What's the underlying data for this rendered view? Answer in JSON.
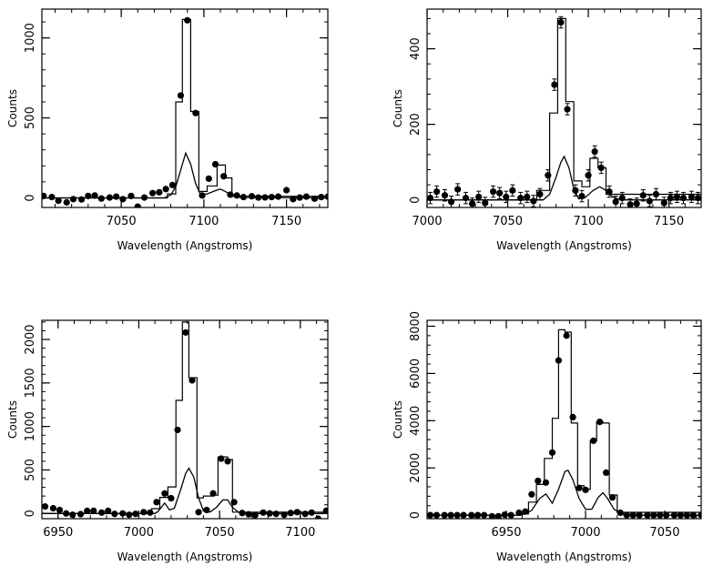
{
  "chart_data": [
    {
      "type": "scatter",
      "xlabel": "Wavelength (Angstroms)",
      "ylabel": "Counts",
      "xlim": [
        7002,
        7175
      ],
      "ylim": [
        -60,
        1180
      ],
      "xticks": [
        7050,
        7100,
        7150
      ],
      "yticks": [
        0,
        500,
        1000
      ],
      "points": [
        [
          7003,
          12
        ],
        [
          7008,
          5
        ],
        [
          7012,
          -18
        ],
        [
          7017,
          -28
        ],
        [
          7021,
          -8
        ],
        [
          7026,
          -10
        ],
        [
          7030,
          12
        ],
        [
          7034,
          15
        ],
        [
          7038,
          -4
        ],
        [
          7043,
          2
        ],
        [
          7047,
          8
        ],
        [
          7051,
          -8
        ],
        [
          7056,
          12
        ],
        [
          7060,
          -55
        ],
        [
          7064,
          2
        ],
        [
          7069,
          30
        ],
        [
          7073,
          35
        ],
        [
          7077,
          55
        ],
        [
          7081,
          80
        ],
        [
          7086,
          640
        ],
        [
          7090,
          1110
        ],
        [
          7095,
          530
        ],
        [
          7099,
          15
        ],
        [
          7103,
          120
        ],
        [
          7107,
          210
        ],
        [
          7112,
          135
        ],
        [
          7116,
          20
        ],
        [
          7120,
          15
        ],
        [
          7124,
          5
        ],
        [
          7129,
          10
        ],
        [
          7133,
          2
        ],
        [
          7137,
          3
        ],
        [
          7141,
          5
        ],
        [
          7145,
          8
        ],
        [
          7150,
          48
        ],
        [
          7154,
          -8
        ],
        [
          7158,
          2
        ],
        [
          7162,
          8
        ],
        [
          7167,
          -5
        ],
        [
          7171,
          5
        ],
        [
          7175,
          8
        ]
      ],
      "histogram": [
        [
          7002,
          0
        ],
        [
          7078,
          0
        ],
        [
          7078,
          25
        ],
        [
          7083,
          25
        ],
        [
          7083,
          600
        ],
        [
          7087,
          600
        ],
        [
          7087,
          1115
        ],
        [
          7092,
          1115
        ],
        [
          7092,
          540
        ],
        [
          7097,
          540
        ],
        [
          7097,
          40
        ],
        [
          7102,
          40
        ],
        [
          7102,
          75
        ],
        [
          7108,
          75
        ],
        [
          7108,
          205
        ],
        [
          7113,
          205
        ],
        [
          7113,
          125
        ],
        [
          7117,
          125
        ],
        [
          7117,
          10
        ],
        [
          7175,
          10
        ]
      ],
      "model": [
        [
          7002,
          0
        ],
        [
          7076,
          0
        ],
        [
          7080,
          18
        ],
        [
          7083,
          70
        ],
        [
          7086,
          175
        ],
        [
          7089,
          280
        ],
        [
          7092,
          210
        ],
        [
          7095,
          90
        ],
        [
          7098,
          20
        ],
        [
          7102,
          25
        ],
        [
          7107,
          45
        ],
        [
          7110,
          55
        ],
        [
          7113,
          40
        ],
        [
          7117,
          15
        ],
        [
          7122,
          3
        ],
        [
          7175,
          0
        ]
      ]
    },
    {
      "type": "scatter",
      "xlabel": "Wavelength (Angstroms)",
      "ylabel": "Counts",
      "xlim": [
        7000,
        7170
      ],
      "ylim": [
        -20,
        505
      ],
      "xticks": [
        7000,
        7050,
        7100,
        7150
      ],
      "yticks": [
        0,
        200,
        400
      ],
      "points": [
        [
          7002,
          5
        ],
        [
          7006,
          22
        ],
        [
          7011,
          12
        ],
        [
          7015,
          -5
        ],
        [
          7019,
          28
        ],
        [
          7024,
          5
        ],
        [
          7028,
          -10
        ],
        [
          7032,
          8
        ],
        [
          7036,
          -8
        ],
        [
          7041,
          22
        ],
        [
          7045,
          18
        ],
        [
          7049,
          8
        ],
        [
          7053,
          25
        ],
        [
          7058,
          5
        ],
        [
          7062,
          8
        ],
        [
          7066,
          -3
        ],
        [
          7070,
          15
        ],
        [
          7075,
          65
        ],
        [
          7079,
          305
        ],
        [
          7083,
          470
        ],
        [
          7087,
          240
        ],
        [
          7092,
          25
        ],
        [
          7096,
          10
        ],
        [
          7100,
          65
        ],
        [
          7104,
          128
        ],
        [
          7108,
          85
        ],
        [
          7113,
          22
        ],
        [
          7117,
          -5
        ],
        [
          7121,
          5
        ],
        [
          7126,
          -12
        ],
        [
          7130,
          -10
        ],
        [
          7134,
          12
        ],
        [
          7138,
          -3
        ],
        [
          7142,
          15
        ],
        [
          7147,
          -8
        ],
        [
          7151,
          5
        ],
        [
          7155,
          8
        ],
        [
          7159,
          5
        ],
        [
          7164,
          8
        ],
        [
          7168,
          5
        ]
      ],
      "errors": 15,
      "histogram": [
        [
          7000,
          0
        ],
        [
          7068,
          0
        ],
        [
          7068,
          25
        ],
        [
          7076,
          25
        ],
        [
          7076,
          230
        ],
        [
          7081,
          230
        ],
        [
          7081,
          480
        ],
        [
          7086,
          480
        ],
        [
          7086,
          260
        ],
        [
          7091,
          260
        ],
        [
          7091,
          50
        ],
        [
          7096,
          50
        ],
        [
          7096,
          35
        ],
        [
          7101,
          35
        ],
        [
          7101,
          110
        ],
        [
          7106,
          110
        ],
        [
          7106,
          85
        ],
        [
          7111,
          85
        ],
        [
          7111,
          15
        ],
        [
          7170,
          15
        ]
      ],
      "model": [
        [
          7000,
          0
        ],
        [
          7072,
          0
        ],
        [
          7076,
          15
        ],
        [
          7080,
          60
        ],
        [
          7083,
          100
        ],
        [
          7085,
          115
        ],
        [
          7088,
          85
        ],
        [
          7091,
          30
        ],
        [
          7094,
          3
        ],
        [
          7098,
          6
        ],
        [
          7103,
          25
        ],
        [
          7107,
          35
        ],
        [
          7111,
          25
        ],
        [
          7115,
          8
        ],
        [
          7120,
          0
        ],
        [
          7170,
          0
        ]
      ]
    },
    {
      "type": "scatter",
      "xlabel": "Wavelength (Angstroms)",
      "ylabel": "Counts",
      "xlim": [
        6940,
        7117
      ],
      "ylim": [
        -60,
        2220
      ],
      "xticks": [
        6950,
        7000,
        7050,
        7100
      ],
      "yticks": [
        0,
        500,
        1000,
        1500,
        2000
      ],
      "points": [
        [
          6942,
          80
        ],
        [
          6947,
          60
        ],
        [
          6951,
          40
        ],
        [
          6955,
          0
        ],
        [
          6959,
          -15
        ],
        [
          6964,
          -8
        ],
        [
          6968,
          30
        ],
        [
          6972,
          30
        ],
        [
          6977,
          10
        ],
        [
          6981,
          30
        ],
        [
          6985,
          -5
        ],
        [
          6990,
          0
        ],
        [
          6994,
          -15
        ],
        [
          6998,
          -5
        ],
        [
          7003,
          15
        ],
        [
          7007,
          10
        ],
        [
          7011,
          130
        ],
        [
          7016,
          230
        ],
        [
          7020,
          175
        ],
        [
          7024,
          960
        ],
        [
          7029,
          2080
        ],
        [
          7033,
          1530
        ],
        [
          7037,
          15
        ],
        [
          7042,
          40
        ],
        [
          7046,
          230
        ],
        [
          7051,
          630
        ],
        [
          7055,
          600
        ],
        [
          7059,
          130
        ],
        [
          7064,
          5
        ],
        [
          7068,
          -10
        ],
        [
          7072,
          -20
        ],
        [
          7077,
          10
        ],
        [
          7081,
          0
        ],
        [
          7085,
          -5
        ],
        [
          7090,
          -15
        ],
        [
          7094,
          5
        ],
        [
          7098,
          15
        ],
        [
          7103,
          -5
        ],
        [
          7107,
          10
        ],
        [
          7111,
          -60
        ],
        [
          7116,
          30
        ]
      ],
      "histogram": [
        [
          6940,
          0
        ],
        [
          7008,
          0
        ],
        [
          7008,
          55
        ],
        [
          7013,
          55
        ],
        [
          7013,
          185
        ],
        [
          7018,
          185
        ],
        [
          7018,
          305
        ],
        [
          7023,
          305
        ],
        [
          7023,
          1300
        ],
        [
          7027,
          1300
        ],
        [
          7027,
          2200
        ],
        [
          7031,
          2200
        ],
        [
          7031,
          1560
        ],
        [
          7036,
          1560
        ],
        [
          7036,
          180
        ],
        [
          7040,
          180
        ],
        [
          7040,
          200
        ],
        [
          7045,
          200
        ],
        [
          7045,
          210
        ],
        [
          7049,
          210
        ],
        [
          7049,
          650
        ],
        [
          7055,
          650
        ],
        [
          7055,
          620
        ],
        [
          7058,
          620
        ],
        [
          7058,
          15
        ],
        [
          7117,
          15
        ]
      ],
      "model": [
        [
          6940,
          0
        ],
        [
          7010,
          0
        ],
        [
          7012,
          25
        ],
        [
          7016,
          120
        ],
        [
          7019,
          40
        ],
        [
          7022,
          60
        ],
        [
          7026,
          280
        ],
        [
          7029,
          460
        ],
        [
          7031,
          520
        ],
        [
          7034,
          420
        ],
        [
          7037,
          180
        ],
        [
          7040,
          30
        ],
        [
          7044,
          15
        ],
        [
          7048,
          70
        ],
        [
          7052,
          155
        ],
        [
          7055,
          155
        ],
        [
          7058,
          70
        ],
        [
          7062,
          10
        ],
        [
          7066,
          0
        ],
        [
          7117,
          0
        ]
      ]
    },
    {
      "type": "scatter",
      "xlabel": "Wavelength (Angstroms)",
      "ylabel": "Counts",
      "xlim": [
        6900,
        7073
      ],
      "ylim": [
        -150,
        8250
      ],
      "xticks": [
        6950,
        7000,
        7050
      ],
      "yticks": [
        0,
        2000,
        4000,
        6000,
        8000
      ],
      "points": [
        [
          6902,
          0
        ],
        [
          6906,
          0
        ],
        [
          6911,
          0
        ],
        [
          6915,
          0
        ],
        [
          6919,
          0
        ],
        [
          6923,
          0
        ],
        [
          6928,
          0
        ],
        [
          6932,
          0
        ],
        [
          6936,
          0
        ],
        [
          6941,
          -50
        ],
        [
          6945,
          -50
        ],
        [
          6949,
          20
        ],
        [
          6953,
          0
        ],
        [
          6958,
          100
        ],
        [
          6962,
          150
        ],
        [
          6966,
          880
        ],
        [
          6970,
          1450
        ],
        [
          6975,
          1380
        ],
        [
          6979,
          2650
        ],
        [
          6983,
          6550
        ],
        [
          6988,
          7600
        ],
        [
          6992,
          4150
        ],
        [
          6996,
          1150
        ],
        [
          7000,
          1070
        ],
        [
          7005,
          3150
        ],
        [
          7009,
          3950
        ],
        [
          7013,
          1800
        ],
        [
          7017,
          750
        ],
        [
          7022,
          100
        ],
        [
          7026,
          0
        ],
        [
          7030,
          0
        ],
        [
          7034,
          0
        ],
        [
          7039,
          0
        ],
        [
          7043,
          0
        ],
        [
          7047,
          0
        ],
        [
          7051,
          0
        ],
        [
          7056,
          0
        ],
        [
          7060,
          0
        ],
        [
          7064,
          0
        ],
        [
          7068,
          0
        ],
        [
          7073,
          0
        ]
      ],
      "histogram": [
        [
          6900,
          0
        ],
        [
          6960,
          0
        ],
        [
          6960,
          50
        ],
        [
          6964,
          50
        ],
        [
          6964,
          550
        ],
        [
          6969,
          550
        ],
        [
          6969,
          1300
        ],
        [
          6974,
          1300
        ],
        [
          6974,
          2400
        ],
        [
          6979,
          2400
        ],
        [
          6979,
          4100
        ],
        [
          6983,
          4100
        ],
        [
          6983,
          7850
        ],
        [
          6987,
          7850
        ],
        [
          6987,
          7750
        ],
        [
          6991,
          7750
        ],
        [
          6991,
          3900
        ],
        [
          6995,
          3900
        ],
        [
          6995,
          1250
        ],
        [
          6999,
          1250
        ],
        [
          6999,
          1100
        ],
        [
          7003,
          1100
        ],
        [
          7003,
          3150
        ],
        [
          7007,
          3150
        ],
        [
          7007,
          3950
        ],
        [
          7011,
          3950
        ],
        [
          7011,
          3900
        ],
        [
          7015,
          3900
        ],
        [
          7015,
          850
        ],
        [
          7020,
          850
        ],
        [
          7020,
          120
        ],
        [
          7073,
          120
        ]
      ],
      "model": [
        [
          6900,
          0
        ],
        [
          6958,
          0
        ],
        [
          6962,
          50
        ],
        [
          6966,
          200
        ],
        [
          6971,
          700
        ],
        [
          6975,
          900
        ],
        [
          6979,
          500
        ],
        [
          6983,
          1100
        ],
        [
          6987,
          1850
        ],
        [
          6989,
          1900
        ],
        [
          6992,
          1500
        ],
        [
          6996,
          700
        ],
        [
          7000,
          250
        ],
        [
          7004,
          250
        ],
        [
          7008,
          750
        ],
        [
          7011,
          950
        ],
        [
          7014,
          700
        ],
        [
          7018,
          250
        ],
        [
          7023,
          30
        ],
        [
          7028,
          0
        ],
        [
          7073,
          0
        ]
      ]
    }
  ]
}
